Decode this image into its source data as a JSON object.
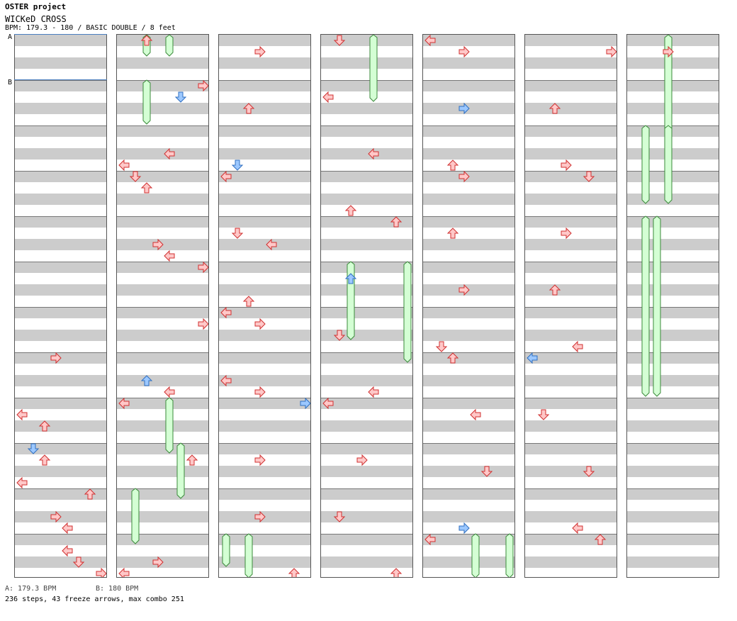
{
  "header": {
    "project": "OSTER project",
    "song_title": "WICKeD CROSS",
    "bpm_line": "BPM: 179.3 - 180 / BASIC DOUBLE / 8 feet"
  },
  "markers": [
    {
      "label": "A",
      "bpm": "179.3"
    },
    {
      "label": "B",
      "bpm": "180"
    }
  ],
  "footer": {
    "bpm_a": "A: 179.3 BPM",
    "bpm_b": "B: 180 BPM",
    "stats": "236 steps, 43 freeze arrows, max combo 251"
  },
  "colors": {
    "note_fill": "#ffc8c8",
    "note_stroke": "#d03030",
    "note_alt_fill": "#9cc8ff",
    "note_alt_stroke": "#2f6fc0",
    "freeze_fill": "#d4ffd4",
    "freeze_stroke": "#3a8a3a",
    "stripe": "#cccccc",
    "marker_line": "#4a7fc0"
  },
  "lanes": [
    "left-p1",
    "down-p1",
    "up-p1",
    "right-p1",
    "left-p2",
    "down-p2",
    "up-p2",
    "right-p2"
  ],
  "icons": {
    "note": "arrow-icon",
    "freeze": "freeze-arrow-icon"
  },
  "chart": {
    "columns": 7,
    "beats_per_column": 12,
    "notes": [
      [
        0,
        7,
        3
      ],
      [
        0,
        8,
        0
      ],
      [
        0,
        8,
        2
      ],
      [
        0,
        9,
        0
      ],
      [
        0,
        9,
        1
      ],
      [
        0,
        9,
        2
      ],
      [
        0,
        10,
        3
      ],
      [
        0,
        10,
        4
      ],
      [
        0,
        10,
        6
      ],
      [
        0,
        11,
        4
      ],
      [
        0,
        11,
        5
      ],
      [
        0,
        11,
        7
      ],
      [
        1,
        0,
        2
      ],
      [
        1,
        1,
        5
      ],
      [
        1,
        2,
        4
      ],
      [
        1,
        2,
        0
      ],
      [
        1,
        3,
        1
      ],
      [
        1,
        3,
        2
      ],
      [
        1,
        4,
        3
      ],
      [
        1,
        4,
        4
      ],
      [
        1,
        5,
        7
      ],
      [
        1,
        6,
        7
      ],
      [
        1,
        7,
        2
      ],
      [
        1,
        7,
        4
      ],
      [
        1,
        8,
        0
      ],
      [
        1,
        9,
        6
      ],
      [
        1,
        11,
        3
      ],
      [
        1,
        11,
        0
      ],
      [
        1,
        1,
        7
      ],
      [
        2,
        0,
        3
      ],
      [
        2,
        1,
        2
      ],
      [
        2,
        2,
        1
      ],
      [
        2,
        3,
        0
      ],
      [
        2,
        4,
        1
      ],
      [
        2,
        4,
        4
      ],
      [
        2,
        5,
        2
      ],
      [
        2,
        6,
        0
      ],
      [
        2,
        6,
        3
      ],
      [
        2,
        7,
        0
      ],
      [
        2,
        7,
        3
      ],
      [
        2,
        8,
        7
      ],
      [
        2,
        9,
        3
      ],
      [
        2,
        10,
        3
      ],
      [
        2,
        11,
        6
      ],
      [
        3,
        0,
        1
      ],
      [
        3,
        1,
        0
      ],
      [
        3,
        2,
        4
      ],
      [
        3,
        3,
        2
      ],
      [
        3,
        4,
        6
      ],
      [
        3,
        5,
        2
      ],
      [
        3,
        6,
        1
      ],
      [
        3,
        7,
        4
      ],
      [
        3,
        8,
        0
      ],
      [
        3,
        9,
        3
      ],
      [
        3,
        10,
        1
      ],
      [
        3,
        11,
        6
      ],
      [
        4,
        0,
        0
      ],
      [
        4,
        0,
        3
      ],
      [
        4,
        1,
        3
      ],
      [
        4,
        2,
        2
      ],
      [
        4,
        3,
        3
      ],
      [
        4,
        4,
        2
      ],
      [
        4,
        5,
        3
      ],
      [
        4,
        6,
        1
      ],
      [
        4,
        7,
        2
      ],
      [
        4,
        8,
        4
      ],
      [
        4,
        9,
        5
      ],
      [
        4,
        10,
        3
      ],
      [
        4,
        11,
        0
      ],
      [
        5,
        0,
        7
      ],
      [
        5,
        1,
        2
      ],
      [
        5,
        2,
        3
      ],
      [
        5,
        3,
        5
      ],
      [
        5,
        4,
        3
      ],
      [
        5,
        5,
        2
      ],
      [
        5,
        6,
        4
      ],
      [
        5,
        7,
        0
      ],
      [
        5,
        8,
        1
      ],
      [
        5,
        9,
        5
      ],
      [
        5,
        10,
        4
      ],
      [
        5,
        11,
        6
      ],
      [
        6,
        0,
        3
      ]
    ],
    "freezes": [
      [
        1,
        0,
        2,
        0,
        1
      ],
      [
        1,
        0,
        4,
        0,
        1
      ],
      [
        1,
        1,
        2,
        1,
        3
      ],
      [
        1,
        8,
        4,
        9,
        0
      ],
      [
        1,
        9,
        5,
        10,
        0
      ],
      [
        1,
        10,
        1,
        11,
        0
      ],
      [
        2,
        11,
        0,
        11,
        2
      ],
      [
        2,
        11,
        2,
        11,
        4
      ],
      [
        3,
        0,
        4,
        0,
        5
      ],
      [
        3,
        5,
        2,
        6,
        2
      ],
      [
        3,
        5,
        7,
        6,
        4
      ],
      [
        4,
        11,
        4,
        12,
        0
      ],
      [
        4,
        11,
        7,
        12,
        0
      ],
      [
        6,
        0,
        3,
        1,
        4
      ],
      [
        6,
        2,
        1,
        3,
        2
      ],
      [
        6,
        2,
        3,
        3,
        2
      ],
      [
        6,
        4,
        1,
        7,
        3
      ],
      [
        6,
        4,
        2,
        7,
        3
      ]
    ]
  }
}
